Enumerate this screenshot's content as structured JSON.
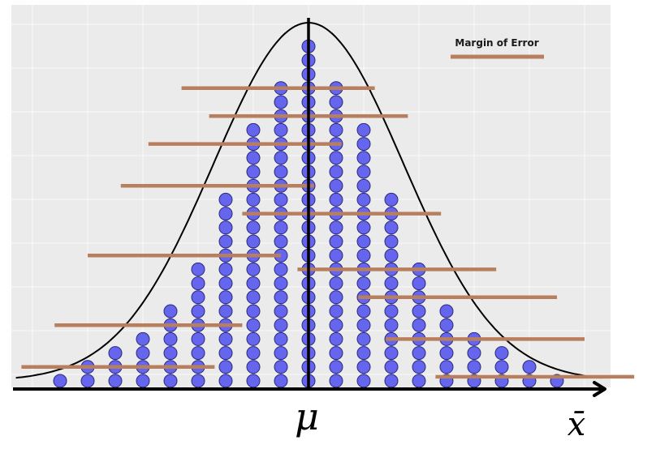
{
  "chart_data": {
    "type": "scatter",
    "title": "",
    "xlabel": "",
    "ylabel": "",
    "grid": true,
    "legend": {
      "position": "top-right",
      "entries": [
        {
          "label": "Margin of Error",
          "color": "#b87f5f"
        }
      ]
    },
    "x_axis_labels": {
      "mean": "μ",
      "sample_mean": "x̄"
    },
    "colors": {
      "panel": "#ebebeb",
      "gridline": "#ffffff",
      "dot_fill": "#6565ee",
      "dot_stroke": "#2a2a7a",
      "interval": "#b87f5f",
      "curve": "#000000",
      "axis": "#000000"
    },
    "mean": 0,
    "x_range": [
      -5.5,
      5.5
    ],
    "dot_columns": [
      {
        "x": -4.5,
        "count": 1
      },
      {
        "x": -4.0,
        "count": 2
      },
      {
        "x": -3.5,
        "count": 3
      },
      {
        "x": -3.0,
        "count": 4
      },
      {
        "x": -2.5,
        "count": 6
      },
      {
        "x": -2.0,
        "count": 9
      },
      {
        "x": -1.5,
        "count": 14
      },
      {
        "x": -1.0,
        "count": 19
      },
      {
        "x": -0.5,
        "count": 22
      },
      {
        "x": 0.0,
        "count": 25
      },
      {
        "x": 0.5,
        "count": 22
      },
      {
        "x": 1.0,
        "count": 19
      },
      {
        "x": 1.5,
        "count": 14
      },
      {
        "x": 2.0,
        "count": 9
      },
      {
        "x": 2.5,
        "count": 6
      },
      {
        "x": 3.0,
        "count": 4
      },
      {
        "x": 3.5,
        "count": 3
      },
      {
        "x": 4.0,
        "count": 2
      },
      {
        "x": 4.5,
        "count": 1
      }
    ],
    "intervals": [
      {
        "level": 21,
        "lo": -2.3,
        "hi": 1.2
      },
      {
        "level": 19,
        "lo": -1.8,
        "hi": 1.8
      },
      {
        "level": 17,
        "lo": -2.9,
        "hi": 0.6
      },
      {
        "level": 14,
        "lo": -3.4,
        "hi": 0.1
      },
      {
        "level": 12,
        "lo": -1.2,
        "hi": 2.4
      },
      {
        "level": 9,
        "lo": -4.0,
        "hi": -0.5
      },
      {
        "level": 8,
        "lo": -0.2,
        "hi": 3.4
      },
      {
        "level": 6,
        "lo": 0.9,
        "hi": 4.5
      },
      {
        "level": 4,
        "lo": -4.6,
        "hi": -1.2
      },
      {
        "level": 3,
        "lo": 1.4,
        "hi": 5.0
      },
      {
        "level": 1,
        "lo": -5.2,
        "hi": -1.7
      },
      {
        "level": 0.3,
        "lo": 2.3,
        "hi": 5.9
      }
    ]
  }
}
